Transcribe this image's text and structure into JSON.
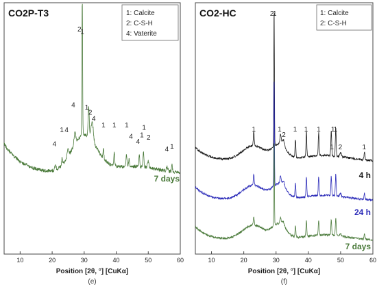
{
  "chart_data": [
    {
      "type": "line",
      "title": "CO2P-T3",
      "subfigure": "(e)",
      "xlabel": "Position [2θ, °] [CuKα]",
      "xlim": [
        5,
        60
      ],
      "xticks": [
        10,
        20,
        30,
        40,
        50,
        60
      ],
      "legend": {
        "position": "top-right",
        "entries": [
          "1: Calcite",
          "2: C-S-H",
          "4: Vaterite"
        ]
      },
      "series": [
        {
          "name": "7 days",
          "color": "#4a7a3a",
          "offset": 0
        }
      ],
      "peaks": [
        {
          "x": 29.4,
          "height": 1.0,
          "width": 0.15,
          "series": 0
        },
        {
          "x": 31.4,
          "height": 0.22,
          "width": 0.25,
          "series": 0
        },
        {
          "x": 32.5,
          "height": 0.14,
          "width": 0.5,
          "series": 0
        },
        {
          "x": 27.1,
          "height": 0.09,
          "width": 0.4,
          "series": 0
        },
        {
          "x": 24.9,
          "height": 0.06,
          "width": 0.4,
          "series": 0
        },
        {
          "x": 21.0,
          "height": 0.03,
          "width": 0.3,
          "series": 0
        },
        {
          "x": 23.1,
          "height": 0.05,
          "width": 0.25,
          "series": 0
        },
        {
          "x": 36.0,
          "height": 0.07,
          "width": 0.2,
          "series": 0
        },
        {
          "x": 39.4,
          "height": 0.1,
          "width": 0.2,
          "series": 0
        },
        {
          "x": 43.2,
          "height": 0.09,
          "width": 0.2,
          "series": 0
        },
        {
          "x": 44.0,
          "height": 0.05,
          "width": 0.25,
          "series": 0
        },
        {
          "x": 47.2,
          "height": 0.08,
          "width": 0.2,
          "series": 0
        },
        {
          "x": 48.5,
          "height": 0.12,
          "width": 0.2,
          "series": 0
        },
        {
          "x": 50.0,
          "height": 0.05,
          "width": 0.3,
          "series": 0
        },
        {
          "x": 55.9,
          "height": 0.03,
          "width": 0.3,
          "series": 0
        },
        {
          "x": 57.4,
          "height": 0.05,
          "width": 0.2,
          "series": 0
        }
      ],
      "annotations": [
        {
          "text": "2",
          "x": 28.5,
          "level": 0
        },
        {
          "text": "1",
          "x": 29.4,
          "level": 0.02
        },
        {
          "text": "1",
          "x": 30.8,
          "level": 0.62
        },
        {
          "text": "2",
          "x": 31.9,
          "level": 0.66
        },
        {
          "text": "4",
          "x": 33.0,
          "level": 0.71
        },
        {
          "text": "4",
          "x": 26.6,
          "level": 0.6
        },
        {
          "text": "4",
          "x": 24.5,
          "level": 0.8
        },
        {
          "text": "4",
          "x": 20.7,
          "level": 0.91
        },
        {
          "text": "1",
          "x": 23.0,
          "level": 0.8
        },
        {
          "text": "1",
          "x": 36.0,
          "level": 0.76
        },
        {
          "text": "1",
          "x": 39.4,
          "level": 0.76
        },
        {
          "text": "1",
          "x": 43.3,
          "level": 0.76
        },
        {
          "text": "4",
          "x": 44.6,
          "level": 0.85
        },
        {
          "text": "4",
          "x": 46.8,
          "level": 0.89
        },
        {
          "text": "1",
          "x": 48.0,
          "level": 0.84
        },
        {
          "text": "1",
          "x": 48.7,
          "level": 0.78
        },
        {
          "text": "2",
          "x": 50.1,
          "level": 0.86
        },
        {
          "text": "4",
          "x": 55.8,
          "level": 0.95
        },
        {
          "text": "1",
          "x": 57.4,
          "level": 0.93
        }
      ],
      "trace_labels": [
        {
          "text": "7 days",
          "color": "#4a7a3a"
        }
      ]
    },
    {
      "type": "line",
      "title": "CO2-HC",
      "subfigure": "(f)",
      "xlabel": "Position [2θ, °] [CuKα]",
      "xlim": [
        5,
        60
      ],
      "xticks": [
        10,
        20,
        30,
        40,
        50,
        60
      ],
      "legend": {
        "position": "top-right",
        "entries": [
          "1: Calcite",
          "2: C-S-H"
        ]
      },
      "series": [
        {
          "name": "4 h",
          "color": "#1a1a1a",
          "offset": 0
        },
        {
          "name": "24 h",
          "color": "#2a2ab8",
          "offset": 1
        },
        {
          "name": "7 days",
          "color": "#4a7a3a",
          "offset": 2
        }
      ],
      "peaks": [
        {
          "x": 29.4,
          "height": 1.0,
          "width": 0.13,
          "series": 0
        },
        {
          "x": 23.1,
          "height": 0.1,
          "width": 0.2,
          "series": 0
        },
        {
          "x": 31.4,
          "height": 0.07,
          "width": 0.3,
          "series": 0
        },
        {
          "x": 32.3,
          "height": 0.05,
          "width": 0.5,
          "series": 0
        },
        {
          "x": 36.0,
          "height": 0.13,
          "width": 0.18,
          "series": 0
        },
        {
          "x": 39.4,
          "height": 0.18,
          "width": 0.18,
          "series": 0
        },
        {
          "x": 43.2,
          "height": 0.17,
          "width": 0.18,
          "series": 0
        },
        {
          "x": 47.1,
          "height": 0.18,
          "width": 0.18,
          "series": 0
        },
        {
          "x": 48.5,
          "height": 0.2,
          "width": 0.18,
          "series": 0
        },
        {
          "x": 50.0,
          "height": 0.03,
          "width": 0.3,
          "series": 0
        },
        {
          "x": 57.4,
          "height": 0.06,
          "width": 0.2,
          "series": 0
        }
      ],
      "annotations": [
        {
          "text": "2",
          "x": 28.7,
          "level": 0
        },
        {
          "text": "1",
          "x": 29.6,
          "level": 0
        },
        {
          "text": "1",
          "x": 23.1,
          "level": 0
        },
        {
          "text": "1",
          "x": 31.1,
          "level": 0
        },
        {
          "text": "2",
          "x": 32.4,
          "level": 0
        },
        {
          "text": "1",
          "x": 35.9,
          "level": 0
        },
        {
          "text": "1",
          "x": 39.3,
          "level": 0
        },
        {
          "text": "1",
          "x": 43.2,
          "level": 0
        },
        {
          "text": "1",
          "x": 47.6,
          "level": 0
        },
        {
          "text": "1",
          "x": 48.4,
          "level": 0
        },
        {
          "text": "1",
          "x": 47.3,
          "level": 1
        },
        {
          "text": "2",
          "x": 49.9,
          "level": 1
        },
        {
          "text": "1",
          "x": 57.3,
          "level": 1
        }
      ],
      "trace_labels": [
        {
          "text": "4 h",
          "color": "#1a1a1a"
        },
        {
          "text": "24 h",
          "color": "#2a2ab8"
        },
        {
          "text": "7 days",
          "color": "#4a7a3a"
        }
      ]
    }
  ]
}
